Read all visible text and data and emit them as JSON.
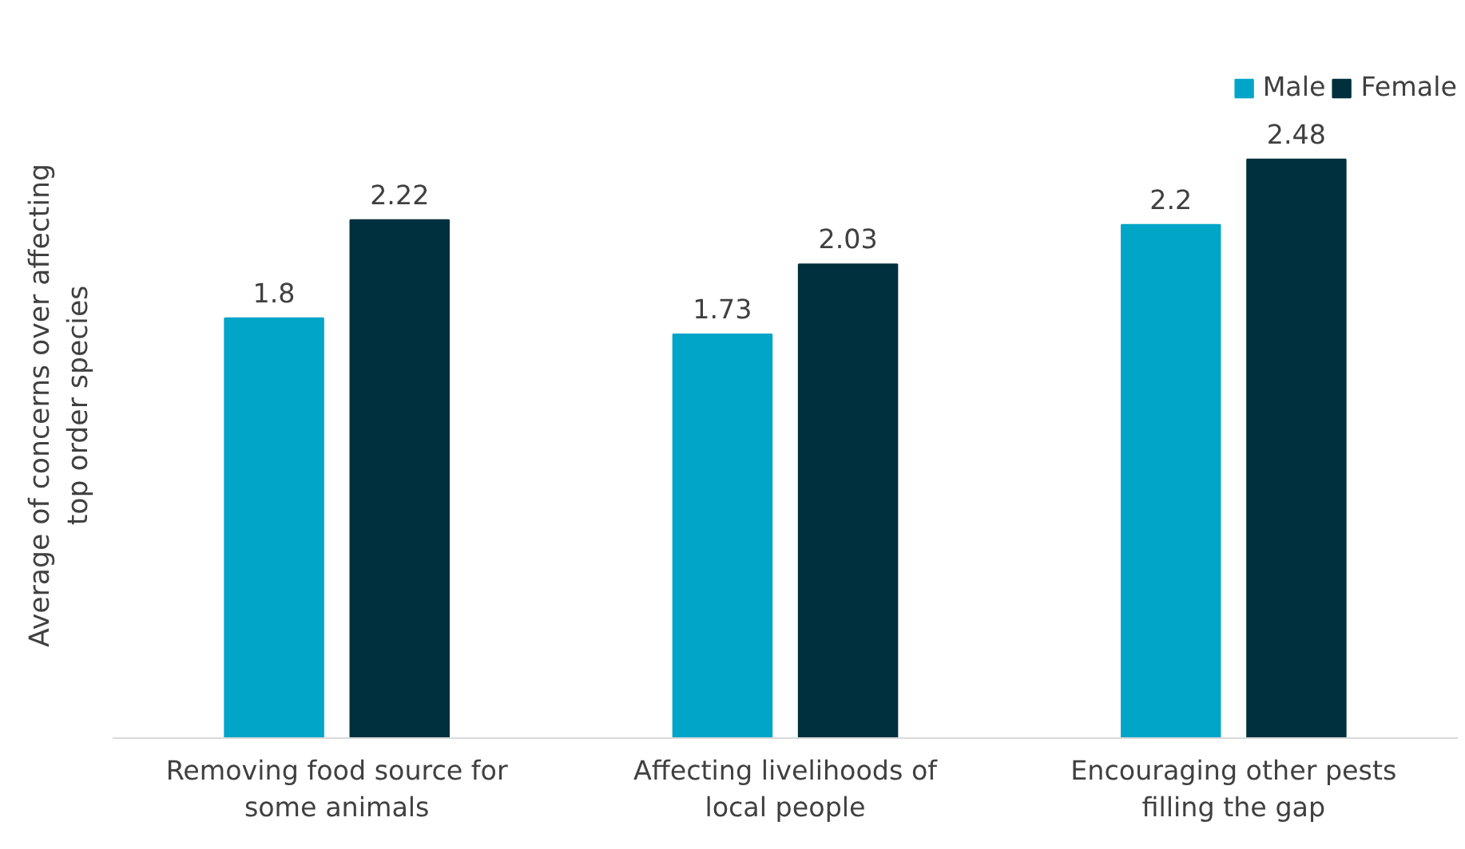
{
  "chart_data": {
    "type": "bar",
    "ylabel": "Average of concerns over affecting top order species",
    "categories": [
      "Removing food source for some animals",
      "Affecting livelihoods of local people",
      "Encouraging other pests filling the gap"
    ],
    "series": [
      {
        "name": "Male",
        "color": "#00a5c8",
        "values": [
          1.8,
          1.73,
          2.2
        ]
      },
      {
        "name": "Female",
        "color": "#00303d",
        "values": [
          2.22,
          2.03,
          2.48
        ]
      }
    ],
    "data_labels": true,
    "legend": "top right",
    "grid": false,
    "tick_labels": "x"
  }
}
